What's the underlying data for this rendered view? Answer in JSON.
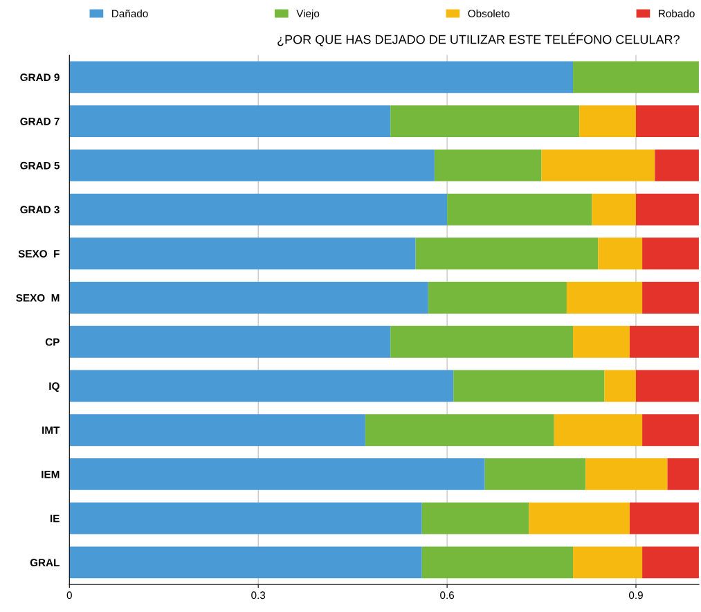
{
  "chart_data": {
    "type": "bar",
    "orientation": "horizontal",
    "stacked": true,
    "title": "¿POR QUE HAS DEJADO DE UTILIZAR ESTE TELÉFONO CELULAR?",
    "categories": [
      "GRAD 9",
      "GRAD 7",
      "GRAD 5",
      "GRAD 3",
      "SEXO  F",
      "SEXO  M",
      "CP",
      "IQ",
      "IMT",
      "IEM",
      "IE",
      "GRAL"
    ],
    "series": [
      {
        "name": "Dañado",
        "color": "#4a9ad6",
        "values": [
          0.8,
          0.51,
          0.58,
          0.6,
          0.55,
          0.57,
          0.51,
          0.61,
          0.47,
          0.66,
          0.56,
          0.56
        ]
      },
      {
        "name": "Viejo",
        "color": "#76b83b",
        "values": [
          0.2,
          0.3,
          0.17,
          0.23,
          0.29,
          0.22,
          0.29,
          0.24,
          0.3,
          0.16,
          0.17,
          0.24
        ]
      },
      {
        "name": "Obsoleto",
        "color": "#f6b910",
        "values": [
          0,
          0.09,
          0.18,
          0.07,
          0.07,
          0.12,
          0.09,
          0.05,
          0.14,
          0.13,
          0.16,
          0.11
        ]
      },
      {
        "name": "Robado",
        "color": "#e4332a",
        "values": [
          0,
          0.1,
          0.07,
          0.1,
          0.09,
          0.09,
          0.11,
          0.1,
          0.09,
          0.05,
          0.11,
          0.09
        ]
      }
    ],
    "xlim": [
      0,
      1
    ],
    "xticks": [
      0,
      0.3,
      0.6,
      0.9
    ],
    "grid": "x",
    "legend": "top"
  }
}
